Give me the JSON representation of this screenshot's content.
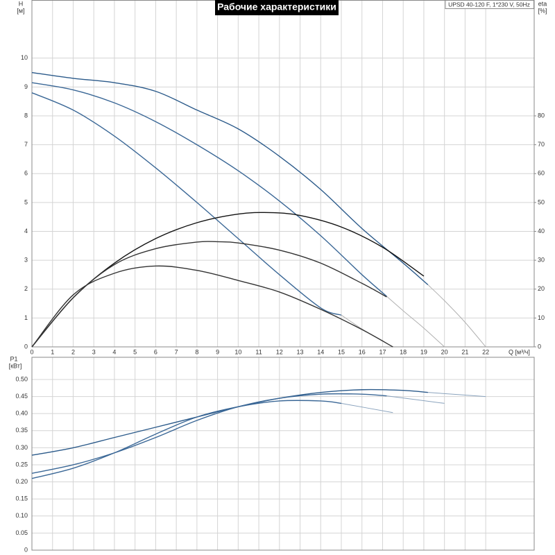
{
  "chart_data": [
    {
      "type": "line",
      "title": "Рабочие характеристики",
      "subtitle": "UPSD 40-120 F, 1*230 V, 50Hz",
      "xlabel": "Q [м³/ч]",
      "ylabel": "H",
      "ylabel_unit": "[м]",
      "y2label": "eta",
      "y2label_unit": "[%]",
      "xlim": [
        0,
        24.35
      ],
      "ylim": [
        0,
        12
      ],
      "y2lim": [
        0,
        120
      ],
      "xticks": [
        0,
        1,
        2,
        3,
        4,
        5,
        6,
        7,
        8,
        9,
        10,
        11,
        12,
        13,
        14,
        15,
        16,
        17,
        18,
        19,
        20,
        21,
        22
      ],
      "yticks": [
        0,
        1,
        2,
        3,
        4,
        5,
        6,
        7,
        8,
        9,
        10
      ],
      "y2ticks": [
        0,
        10,
        20,
        30,
        40,
        50,
        60,
        70,
        80
      ],
      "grid": true,
      "series": [
        {
          "color": "#2b5a8a",
          "x": [
            0,
            2,
            4,
            6,
            8,
            10,
            12,
            14,
            16,
            18,
            19.2
          ],
          "values": [
            9.5,
            9.3,
            9.15,
            8.85,
            8.2,
            7.55,
            6.6,
            5.45,
            4.1,
            2.9,
            2.15
          ]
        },
        {
          "color": "#b0b0b0",
          "x": [
            19.2,
            20,
            21,
            22
          ],
          "values": [
            2.15,
            1.6,
            0.85,
            0
          ]
        },
        {
          "color": "#3a6796",
          "x": [
            0,
            2,
            4,
            6,
            8,
            10,
            12,
            14,
            16,
            17.2
          ],
          "values": [
            9.15,
            8.9,
            8.45,
            7.8,
            7.0,
            6.1,
            5.05,
            3.85,
            2.5,
            1.75
          ]
        },
        {
          "color": "#b0b0b0",
          "x": [
            17.2,
            18,
            19,
            20
          ],
          "values": [
            1.75,
            1.25,
            0.65,
            0
          ]
        },
        {
          "color": "#3a6796",
          "x": [
            0,
            2,
            4,
            6,
            8,
            10,
            12,
            14,
            15
          ],
          "values": [
            8.8,
            8.2,
            7.3,
            6.2,
            5.0,
            3.75,
            2.5,
            1.35,
            1.1
          ]
        },
        {
          "color": "#b0b0b0",
          "x": [
            15,
            16,
            17,
            17.5
          ],
          "values": [
            1.1,
            0.62,
            0.2,
            0
          ]
        },
        {
          "color": "#111111",
          "axis": "y2",
          "x": [
            0,
            2,
            4,
            6,
            8,
            10,
            11.5,
            13,
            15,
            17,
            19
          ],
          "values": [
            0,
            17,
            29,
            37.5,
            43,
            46,
            46.5,
            45.5,
            41.5,
            34.5,
            24.5
          ]
        },
        {
          "color": "#333333",
          "axis": "y2",
          "x": [
            0,
            2,
            4,
            6,
            8,
            9,
            10,
            12,
            14,
            16,
            17.2
          ],
          "values": [
            0,
            17,
            28.5,
            34,
            36.3,
            36.4,
            36,
            33.5,
            29,
            22,
            17.3
          ]
        },
        {
          "color": "#333333",
          "axis": "y2",
          "x": [
            0,
            2,
            4,
            6,
            8,
            10,
            12,
            14,
            16,
            17.5
          ],
          "values": [
            0,
            18,
            25.5,
            28,
            26.5,
            23,
            19,
            13,
            6,
            0
          ]
        }
      ]
    },
    {
      "type": "line",
      "ylabel": "P1",
      "ylabel_unit": "[кВт]",
      "xlim": [
        0,
        24.35
      ],
      "ylim": [
        0,
        0.565
      ],
      "yticks": [
        0,
        0.05,
        {
          "value": 0.1,
          "label": "0.10"
        },
        0.15,
        {
          "value": 0.2,
          "label": "0.20"
        },
        0.25,
        {
          "value": 0.3,
          "label": "0.30"
        },
        0.35,
        {
          "value": 0.4,
          "label": "0.40"
        },
        0.45,
        {
          "value": 0.5,
          "label": "0.50"
        }
      ],
      "grid": true,
      "series": [
        {
          "color": "#2b5a8a",
          "x": [
            0,
            2,
            4,
            6,
            8,
            10,
            12,
            14,
            16,
            18,
            19.2
          ],
          "values": [
            0.278,
            0.3,
            0.33,
            0.36,
            0.39,
            0.42,
            0.445,
            0.462,
            0.47,
            0.468,
            0.462
          ]
        },
        {
          "color": "#8aa3bd",
          "x": [
            19.2,
            22
          ],
          "values": [
            0.462,
            0.45
          ]
        },
        {
          "color": "#3a6796",
          "x": [
            0,
            2,
            4,
            6,
            8,
            10,
            12,
            14,
            16,
            17.2
          ],
          "values": [
            0.225,
            0.25,
            0.285,
            0.33,
            0.38,
            0.42,
            0.445,
            0.457,
            0.457,
            0.452
          ]
        },
        {
          "color": "#8aa3bd",
          "x": [
            17.2,
            20
          ],
          "values": [
            0.452,
            0.43
          ]
        },
        {
          "color": "#3a6796",
          "x": [
            0,
            2,
            4,
            6,
            8,
            10,
            12,
            14,
            15
          ],
          "values": [
            0.21,
            0.24,
            0.285,
            0.34,
            0.39,
            0.42,
            0.437,
            0.437,
            0.43
          ]
        },
        {
          "color": "#8aa3bd",
          "x": [
            15,
            17.5
          ],
          "values": [
            0.43,
            0.403
          ]
        }
      ]
    }
  ]
}
